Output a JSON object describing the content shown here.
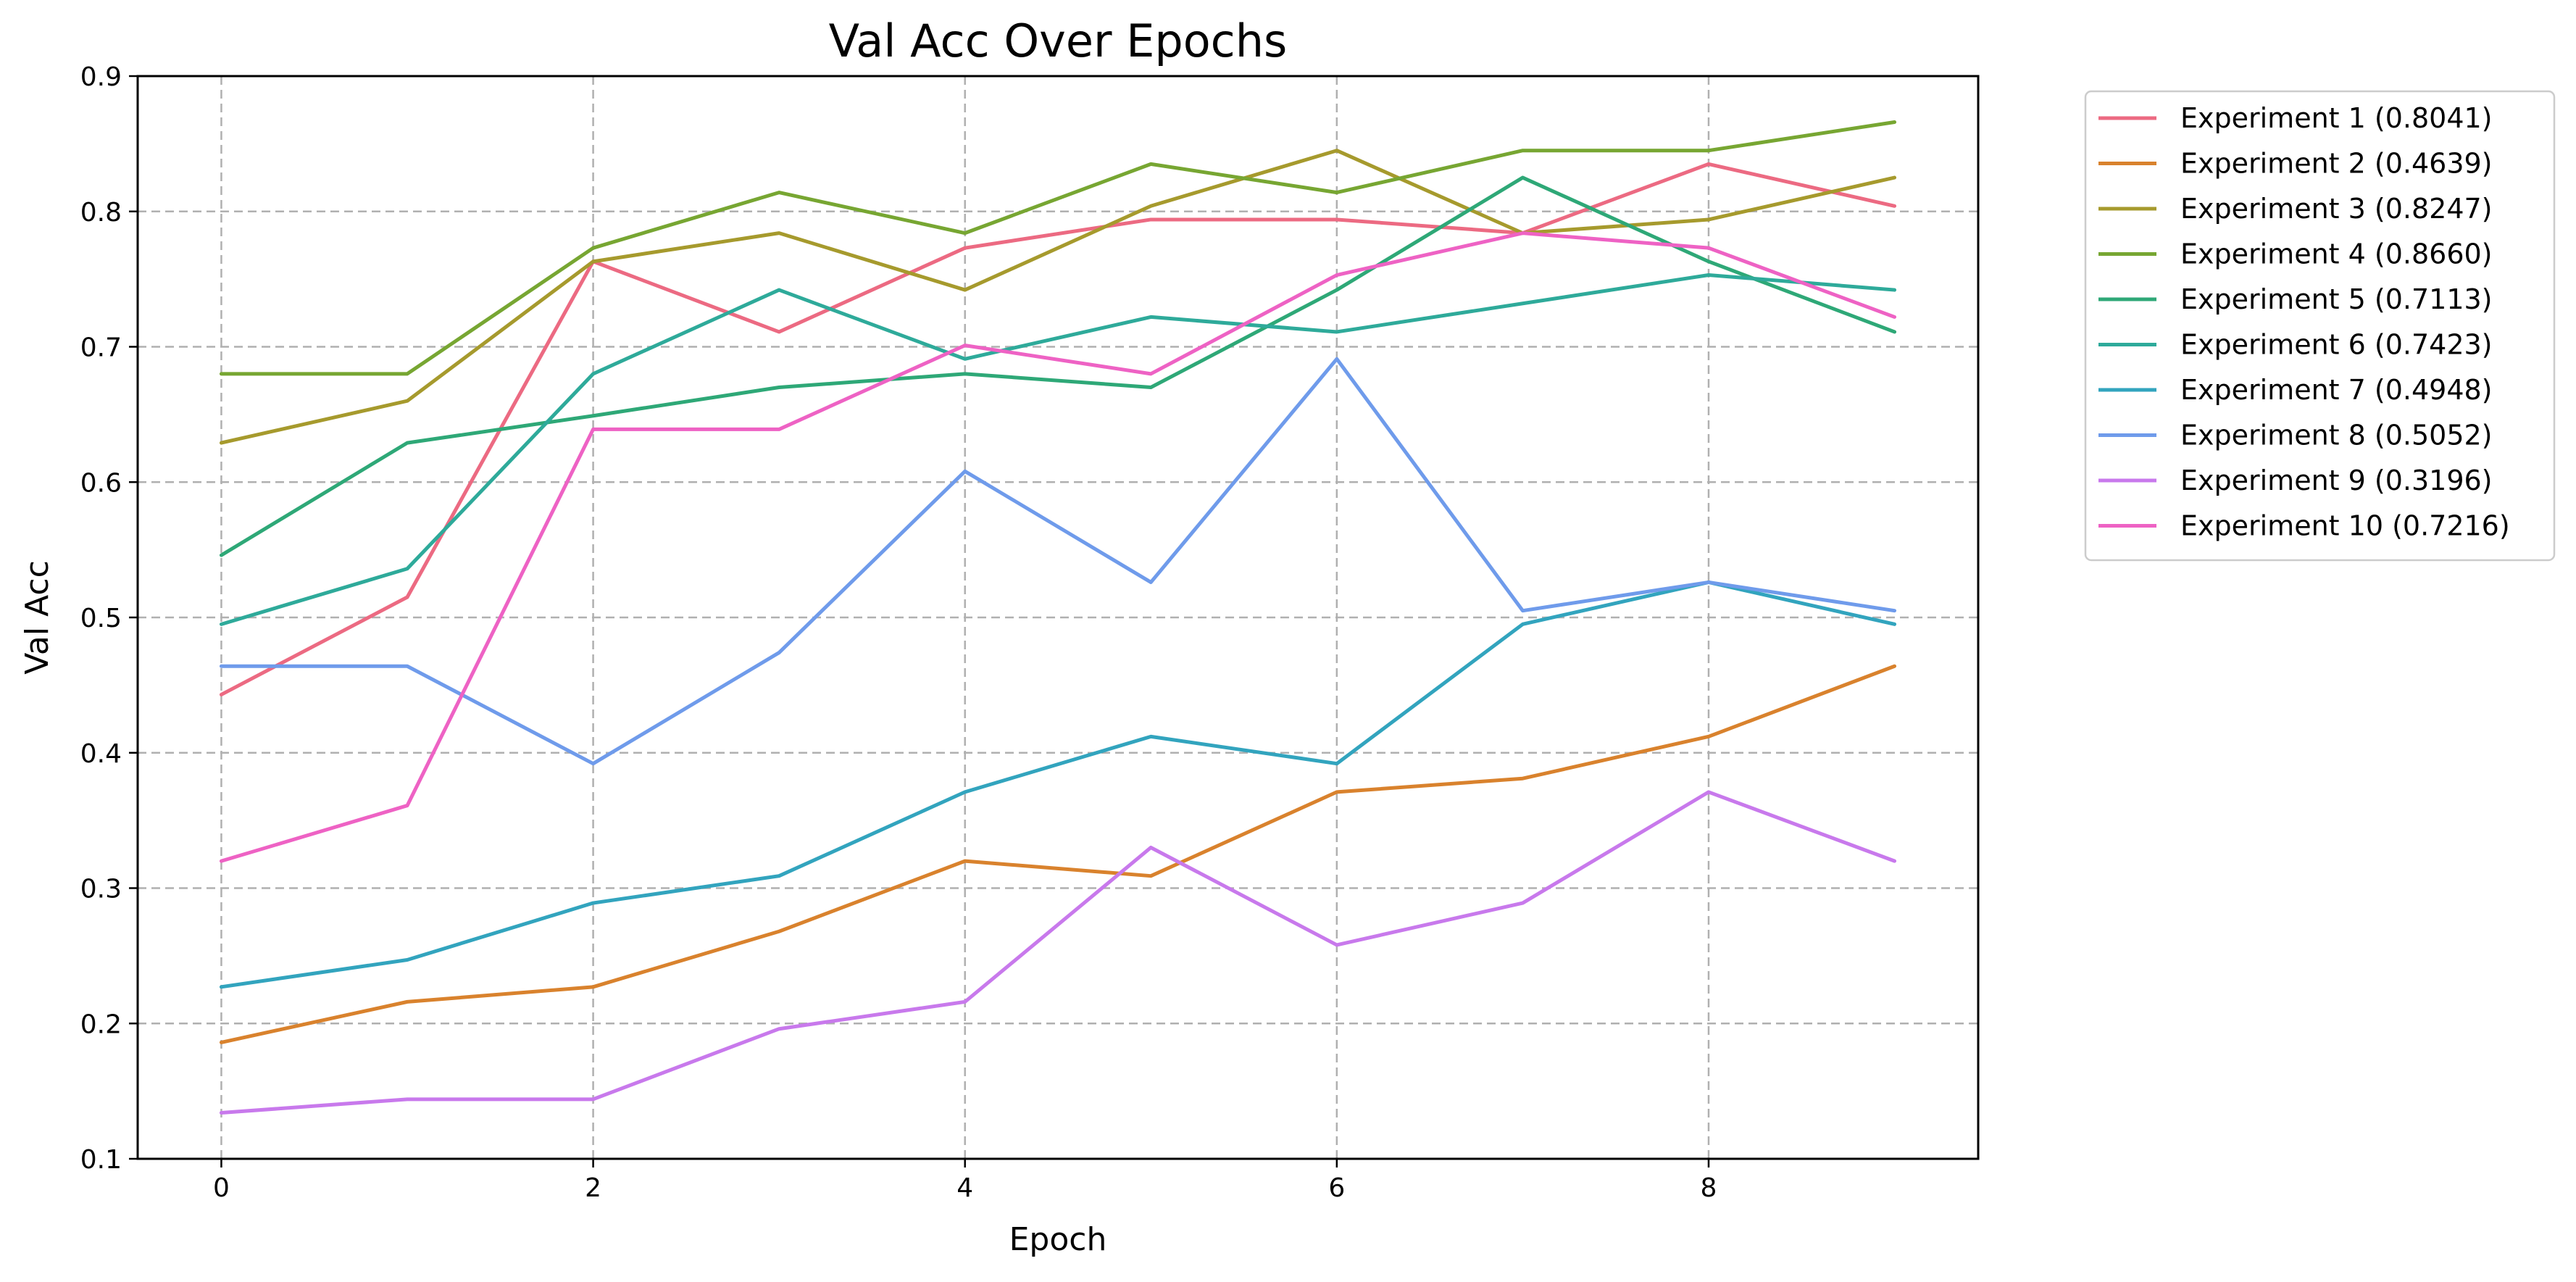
{
  "chart_data": {
    "type": "line",
    "title": "Val Acc Over Epochs",
    "xlabel": "Epoch",
    "ylabel": "Val Acc",
    "x": [
      0,
      1,
      2,
      3,
      4,
      5,
      6,
      7,
      8,
      9
    ],
    "xlim": [
      -0.45,
      9.45
    ],
    "ylim": [
      0.1,
      0.9
    ],
    "xticks": [
      "0",
      "2",
      "4",
      "6",
      "8"
    ],
    "xtick_values": [
      0,
      2,
      4,
      6,
      8
    ],
    "yticks": [
      "0.1",
      "0.2",
      "0.3",
      "0.4",
      "0.5",
      "0.6",
      "0.7",
      "0.8",
      "0.9"
    ],
    "ytick_values": [
      0.1,
      0.2,
      0.3,
      0.4,
      0.5,
      0.6,
      0.7,
      0.8,
      0.9
    ],
    "grid": true,
    "legend_position": "outside-top-right",
    "series": [
      {
        "name": "Experiment 1 (0.8041)",
        "color": "#ec6a82",
        "values": [
          0.443,
          0.515,
          0.763,
          0.711,
          0.773,
          0.794,
          0.794,
          0.784,
          0.835,
          0.804
        ]
      },
      {
        "name": "Experiment 2 (0.4639)",
        "color": "#d9822d",
        "values": [
          0.186,
          0.216,
          0.227,
          0.268,
          0.32,
          0.309,
          0.371,
          0.381,
          0.412,
          0.464
        ]
      },
      {
        "name": "Experiment 3 (0.8247)",
        "color": "#a69a2d",
        "values": [
          0.629,
          0.66,
          0.763,
          0.784,
          0.742,
          0.804,
          0.845,
          0.784,
          0.794,
          0.825
        ]
      },
      {
        "name": "Experiment 4 (0.8660)",
        "color": "#77a632",
        "values": [
          0.68,
          0.68,
          0.773,
          0.814,
          0.784,
          0.835,
          0.814,
          0.845,
          0.845,
          0.866
        ]
      },
      {
        "name": "Experiment 5 (0.7113)",
        "color": "#2ea877",
        "values": [
          0.546,
          0.629,
          0.649,
          0.67,
          0.68,
          0.67,
          0.742,
          0.825,
          0.763,
          0.711
        ]
      },
      {
        "name": "Experiment 6 (0.7423)",
        "color": "#2eaa9a",
        "values": [
          0.495,
          0.536,
          0.68,
          0.742,
          0.691,
          0.722,
          0.711,
          0.732,
          0.753,
          0.742
        ]
      },
      {
        "name": "Experiment 7 (0.4948)",
        "color": "#32a4be",
        "values": [
          0.227,
          0.247,
          0.289,
          0.309,
          0.371,
          0.412,
          0.392,
          0.495,
          0.526,
          0.495
        ]
      },
      {
        "name": "Experiment 8 (0.5052)",
        "color": "#6f9beb",
        "values": [
          0.464,
          0.464,
          0.392,
          0.474,
          0.608,
          0.526,
          0.691,
          0.505,
          0.526,
          0.505
        ]
      },
      {
        "name": "Experiment 9 (0.3196)",
        "color": "#c879ec",
        "values": [
          0.134,
          0.144,
          0.144,
          0.196,
          0.216,
          0.33,
          0.258,
          0.289,
          0.371,
          0.32
        ]
      },
      {
        "name": "Experiment 10 (0.7216)",
        "color": "#ee62c4",
        "values": [
          0.32,
          0.361,
          0.639,
          0.639,
          0.701,
          0.68,
          0.753,
          0.784,
          0.773,
          0.722
        ]
      }
    ]
  }
}
